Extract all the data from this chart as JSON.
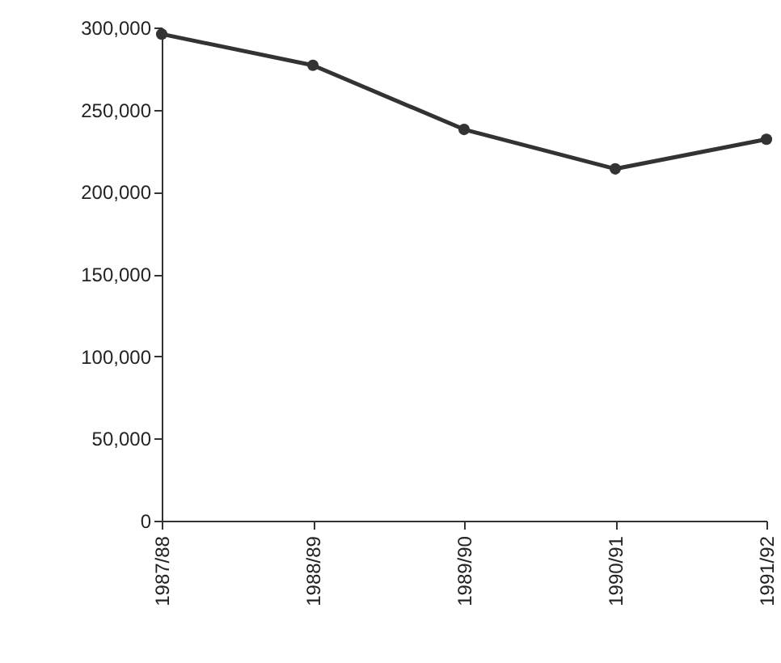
{
  "chart_data": {
    "type": "line",
    "categories": [
      "1987/88",
      "1988/89",
      "1989/90",
      "1990/91",
      "1991/92"
    ],
    "series": [
      {
        "color": "#333333",
        "values": [
          296000,
          277000,
          238000,
          214000,
          232000
        ]
      }
    ],
    "ylim": [
      0,
      300000
    ],
    "yticks": [
      0,
      {
        "value": 50000,
        "label": "50,000"
      },
      {
        "value": 100000,
        "label": "100,000"
      },
      {
        "value": 150000,
        "label": "150,000"
      },
      {
        "value": 200000,
        "label": "200,000"
      },
      {
        "value": 250000,
        "label": "250,000"
      },
      {
        "value": 300000,
        "label": "300,000"
      }
    ],
    "grid": false,
    "marker": "circle",
    "line_style": "solid"
  }
}
